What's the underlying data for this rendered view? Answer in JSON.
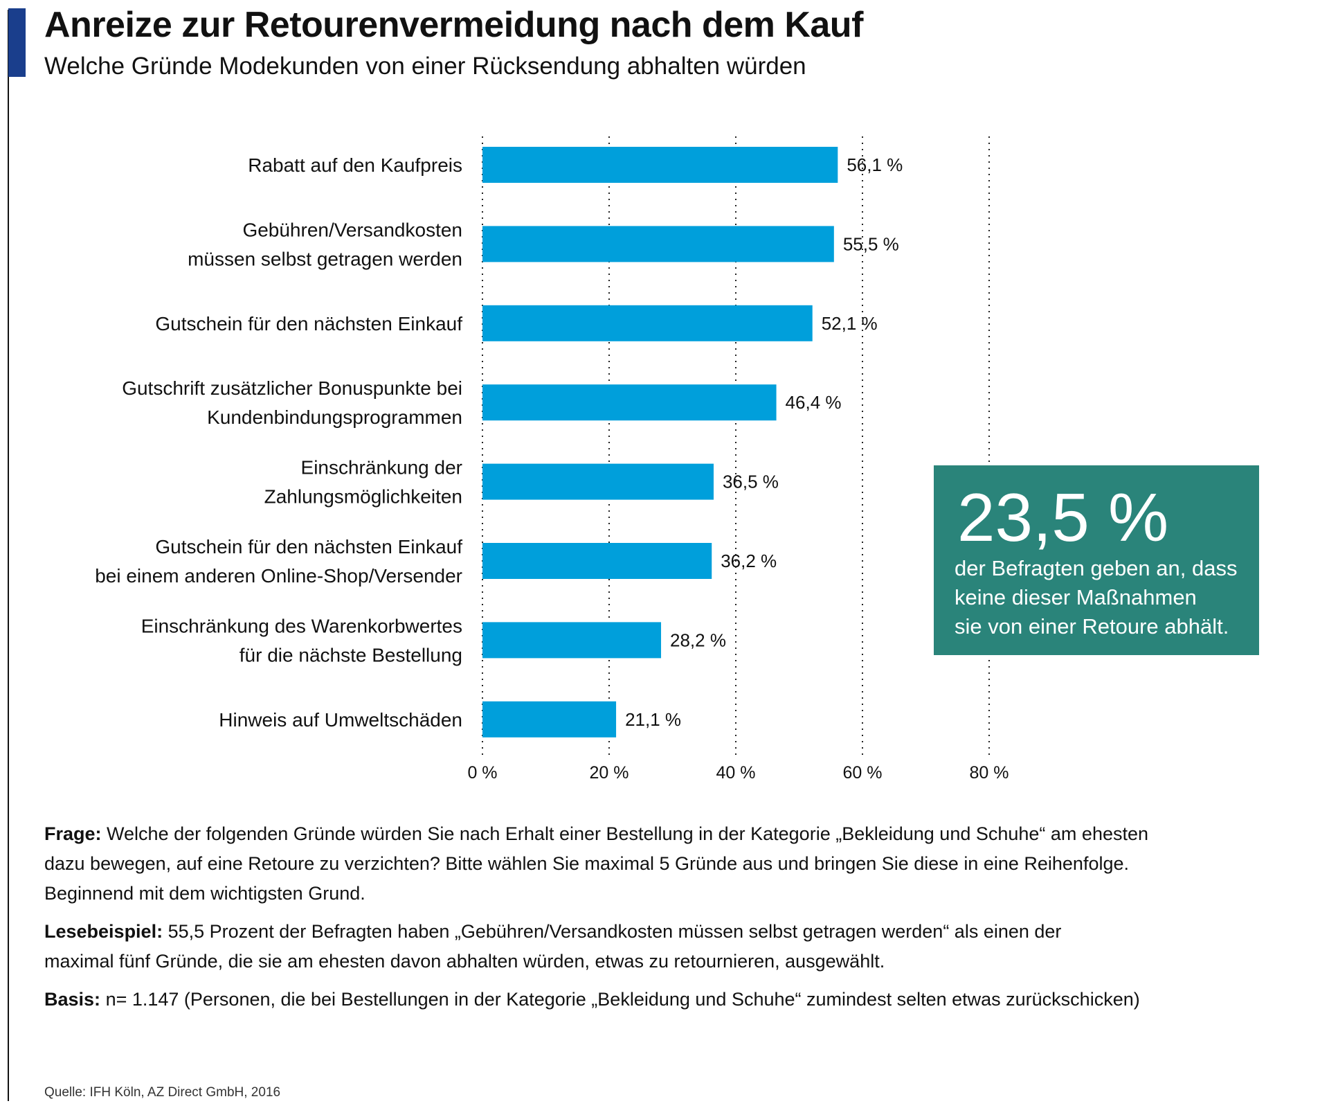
{
  "header": {
    "title": "Anreize zur Retourenvermeidung nach dem Kauf",
    "subtitle": "Welche Gründe Modekunden von einer Rücksendung abhalten würden",
    "accent_color": "#1a3e8c"
  },
  "chart_data": {
    "type": "bar",
    "orientation": "horizontal",
    "categories": [
      [
        "Rabatt auf den Kaufpreis"
      ],
      [
        "Gebühren/Versandkosten",
        "müssen selbst getragen werden"
      ],
      [
        "Gutschein für den nächsten Einkauf"
      ],
      [
        "Gutschrift zusätzlicher Bonuspunkte bei",
        "Kundenbindungsprogrammen"
      ],
      [
        "Einschränkung der",
        "Zahlungsmöglichkeiten"
      ],
      [
        "Gutschein für den nächsten Einkauf",
        "bei einem anderen Online-Shop/Versender"
      ],
      [
        "Einschränkung des Warenkorbwertes",
        "für die nächste Bestellung"
      ],
      [
        "Hinweis auf Umweltschäden"
      ]
    ],
    "values": [
      56.1,
      55.5,
      52.1,
      46.4,
      36.5,
      36.2,
      28.2,
      21.1
    ],
    "value_labels": [
      "56,1 %",
      "55,5 %",
      "52,1 %",
      "46,4 %",
      "36,5 %",
      "36,2 %",
      "28,2 %",
      "21,1 %"
    ],
    "xlim": [
      0,
      80
    ],
    "x_ticks": [
      0,
      20,
      40,
      60,
      80
    ],
    "x_tick_labels": [
      "0 %",
      "20 %",
      "40 %",
      "60 %",
      "80 %"
    ],
    "grid": "vertical dotted",
    "bar_color": "#009fdb"
  },
  "callout": {
    "value": "23,5 %",
    "lines": [
      "der Befragten geben an, dass",
      "keine dieser Maßnahmen",
      "sie von einer Retoure abhält."
    ],
    "color": "#2a847a"
  },
  "notes": {
    "frage_label": "Frage:",
    "frage_text": "Welche der folgenden Gründe würden Sie nach Erhalt einer Bestellung in der Kategorie „Bekleidung und Schuhe“ am ehesten dazu bewegen, auf eine Retoure zu verzichten? Bitte wählen Sie maximal 5 Gründe aus und bringen Sie diese in eine Reihenfolge. Beginnend mit dem wichtigsten Grund.",
    "lese_label": "Lesebeispiel:",
    "lese_text": "55,5 Prozent der Befragten haben „Gebühren/Versandkosten müssen selbst getragen werden“ als einen der maximal fünf Gründe, die sie am ehesten davon abhalten würden, etwas zu retournieren, ausgewählt.",
    "basis_label": "Basis:",
    "basis_text": "n= 1.147 (Personen, die bei Bestellungen in der Kategorie „Bekleidung und Schuhe“ zumindest selten etwas zurückschicken)"
  },
  "source": "Quelle: IFH Köln, AZ Direct GmbH, 2016"
}
